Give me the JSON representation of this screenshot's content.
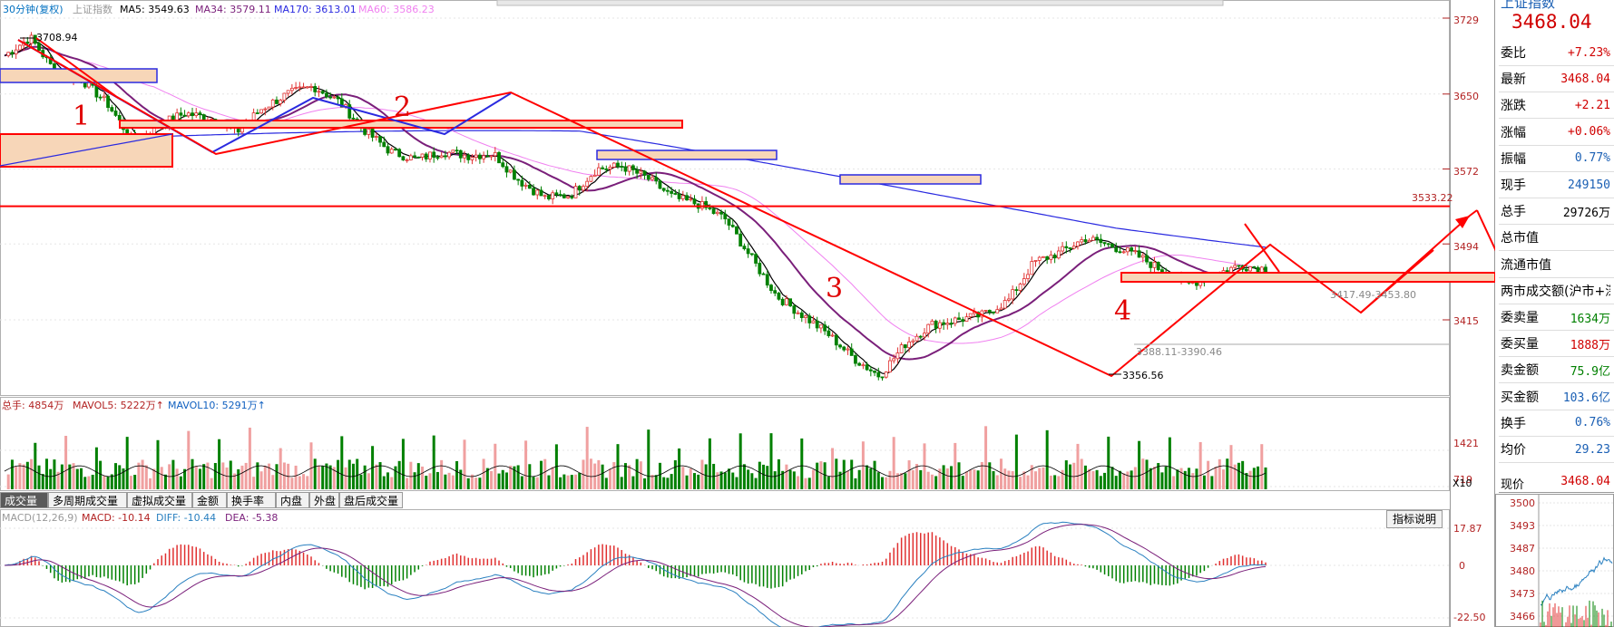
{
  "main_legend": {
    "period": "30分钟(复权)",
    "index_name": "上证指数",
    "ma5": "MA5: 3549.63",
    "ma34": "MA34: 3579.11",
    "ma170": "MA170: 3613.01",
    "ma60": "MA60: 3586.23"
  },
  "price_axis": [
    "3729",
    "3650",
    "3572",
    "3494",
    "3415"
  ],
  "hline_label": "3533.22",
  "annotations": {
    "high": "3708.94",
    "low": "3356.56",
    "range1": "3388.11-3390.46",
    "range2": "3417.49-3453.80",
    "wave_numbers": [
      "1",
      "2",
      "3",
      "4"
    ]
  },
  "volume_legend": {
    "total": "总手: 4854万",
    "mavol5": "MAVOL5: 5222万↑",
    "mavol10": "MAVOL10: 5291万↑"
  },
  "volume_axis": [
    "1421",
    "719",
    "X10"
  ],
  "tabs": [
    "成交量",
    "多周期成交量",
    "虚拟成交量",
    "金额",
    "换手率",
    "内盘",
    "外盘",
    "盘后成交量"
  ],
  "macd_legend": {
    "name": "MACD(12,26,9)",
    "macd": "MACD: -10.14",
    "diff": "DIFF: -10.44",
    "dea": "DEA: -5.38",
    "explain_button": "指标说明"
  },
  "macd_axis": [
    "17.87",
    "0",
    "-22.50"
  ],
  "right_panel": {
    "title_partial": "上证指数",
    "price": "3468.04",
    "rows": [
      {
        "k": "委比",
        "v": "+7.23%",
        "c": "red"
      },
      {
        "k": "最新",
        "v": "3468.04",
        "c": "red"
      },
      {
        "k": "涨跌",
        "v": "+2.21",
        "c": "red"
      },
      {
        "k": "涨幅",
        "v": "+0.06%",
        "c": "red"
      },
      {
        "k": "振幅",
        "v": "0.77%",
        "c": "blue"
      },
      {
        "k": "现手",
        "v": "249150",
        "c": "blue"
      },
      {
        "k": "总手",
        "v": "29726万",
        "c": "black"
      },
      {
        "k": "总市值",
        "v": "",
        "c": "black"
      },
      {
        "k": "流通市值",
        "v": "",
        "c": "black"
      },
      {
        "k": "两市成交额(沪市+深",
        "v": "",
        "c": "black"
      },
      {
        "k": "委卖量",
        "v": "1634万",
        "c": "green"
      },
      {
        "k": "委买量",
        "v": "1888万",
        "c": "red"
      },
      {
        "k": "卖金额",
        "v": "75.9亿",
        "c": "green"
      },
      {
        "k": "买金额",
        "v": "103.6亿",
        "c": "blue"
      },
      {
        "k": "换手",
        "v": "0.76%",
        "c": "blue"
      },
      {
        "k": "均价",
        "v": "29.23",
        "c": "blue"
      }
    ],
    "current_price_label": "现价",
    "current_price_value": "3468.04",
    "mini_axis": [
      "3500",
      "3493",
      "3487",
      "3480",
      "3473",
      "3466"
    ]
  },
  "colors": {
    "up": "#e03030",
    "down": "#008000",
    "ma5": "#000000",
    "ma34": "#7a1f7a",
    "ma170": "#2a2ae0",
    "ma60": "#f080f0",
    "drawing": "#ff0000"
  },
  "chart_data": {
    "type": "line",
    "title": "上证指数 30分钟(复权)",
    "y_axis_ticks": [
      3729,
      3650,
      3572,
      3494,
      3415
    ],
    "key_levels": {
      "high": 3708.94,
      "low": 3356.56,
      "horizontal_line": 3533.22,
      "last": 3468.04
    },
    "ma_values": {
      "MA5": 3549.63,
      "MA34": 3579.11,
      "MA170": 3613.01,
      "MA60": 3586.23
    },
    "volume": {
      "total_wan": 4854,
      "mavol5_wan": 5222,
      "mavol10_wan": 5291,
      "axis_ticks": [
        1421,
        719
      ]
    },
    "macd": {
      "MACD": -10.14,
      "DIFF": -10.44,
      "DEA": -5.38,
      "axis_ticks": [
        17.87,
        0,
        -22.5
      ]
    },
    "approx_price_path": [
      3690,
      3708.94,
      3672,
      3665,
      3640,
      3600,
      3618,
      3630,
      3625,
      3610,
      3635,
      3650,
      3658,
      3642,
      3612,
      3590,
      3582,
      3590,
      3586,
      3588,
      3560,
      3542,
      3545,
      3572,
      3575,
      3562,
      3542,
      3535,
      3520,
      3480,
      3440,
      3420,
      3400,
      3375,
      3356.56,
      3390,
      3410,
      3415,
      3420,
      3435,
      3475,
      3485,
      3500,
      3492,
      3482,
      3466,
      3452,
      3462,
      3472,
      3468.04
    ]
  }
}
